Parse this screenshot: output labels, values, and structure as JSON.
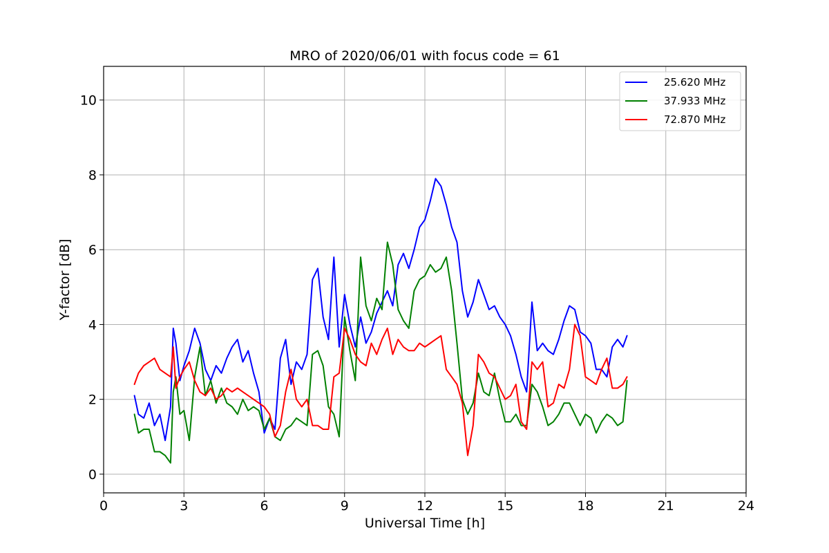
{
  "chart_data": {
    "type": "line",
    "title": "MRO of 2020/06/01 with focus code = 61",
    "xlabel": "Universal Time [h]",
    "ylabel": "Y-factor [dB]",
    "xlim": [
      0,
      24
    ],
    "ylim": [
      -0.5,
      10.9
    ],
    "xticks": [
      0,
      3,
      6,
      9,
      12,
      15,
      18,
      21,
      24
    ],
    "yticks": [
      0,
      2,
      4,
      6,
      8,
      10
    ],
    "grid": true,
    "legend_position": "top-right",
    "series": [
      {
        "name": "25.620 MHz",
        "color": "#0000ff",
        "x": [
          1.15,
          1.3,
          1.5,
          1.7,
          1.9,
          2.1,
          2.3,
          2.5,
          2.6,
          2.7,
          2.85,
          3.0,
          3.2,
          3.4,
          3.6,
          3.8,
          4.0,
          4.2,
          4.4,
          4.6,
          4.8,
          5.0,
          5.2,
          5.4,
          5.6,
          5.8,
          6.0,
          6.2,
          6.4,
          6.6,
          6.8,
          7.0,
          7.2,
          7.4,
          7.6,
          7.8,
          8.0,
          8.2,
          8.4,
          8.6,
          8.8,
          9.0,
          9.2,
          9.4,
          9.6,
          9.8,
          10.0,
          10.2,
          10.4,
          10.6,
          10.8,
          11.0,
          11.2,
          11.4,
          11.6,
          11.8,
          12.0,
          12.2,
          12.4,
          12.6,
          12.8,
          13.0,
          13.2,
          13.4,
          13.6,
          13.8,
          14.0,
          14.2,
          14.4,
          14.6,
          14.8,
          15.0,
          15.2,
          15.4,
          15.6,
          15.8,
          16.0,
          16.2,
          16.4,
          16.6,
          16.8,
          17.0,
          17.2,
          17.4,
          17.6,
          17.8,
          18.0,
          18.2,
          18.4,
          18.6,
          18.8,
          19.0,
          19.2,
          19.4,
          19.55
        ],
        "values": [
          2.1,
          1.6,
          1.5,
          1.9,
          1.3,
          1.6,
          0.9,
          1.8,
          3.9,
          3.5,
          2.5,
          2.9,
          3.3,
          3.9,
          3.5,
          2.8,
          2.5,
          2.9,
          2.7,
          3.1,
          3.4,
          3.6,
          3.0,
          3.3,
          2.7,
          2.2,
          1.1,
          1.5,
          1.2,
          3.1,
          3.6,
          2.4,
          3.0,
          2.8,
          3.2,
          5.2,
          5.5,
          4.2,
          3.6,
          5.8,
          3.4,
          4.8,
          4.0,
          3.4,
          4.2,
          3.5,
          3.8,
          4.3,
          4.6,
          4.9,
          4.5,
          5.6,
          5.9,
          5.5,
          6.0,
          6.6,
          6.8,
          7.3,
          7.9,
          7.7,
          7.2,
          6.6,
          6.2,
          4.9,
          4.2,
          4.6,
          5.2,
          4.8,
          4.4,
          4.5,
          4.2,
          4.0,
          3.7,
          3.2,
          2.6,
          2.2,
          4.6,
          3.3,
          3.5,
          3.3,
          3.2,
          3.6,
          4.1,
          4.5,
          4.4,
          3.8,
          3.7,
          3.5,
          2.8,
          2.8,
          2.6,
          3.4,
          3.6,
          3.4,
          3.7
        ]
      },
      {
        "name": "37.933 MHz",
        "color": "#008000",
        "x": [
          1.15,
          1.3,
          1.5,
          1.7,
          1.9,
          2.1,
          2.3,
          2.5,
          2.6,
          2.7,
          2.85,
          3.0,
          3.2,
          3.4,
          3.6,
          3.8,
          4.0,
          4.2,
          4.4,
          4.6,
          4.8,
          5.0,
          5.2,
          5.4,
          5.6,
          5.8,
          6.0,
          6.2,
          6.4,
          6.6,
          6.8,
          7.0,
          7.2,
          7.4,
          7.6,
          7.8,
          8.0,
          8.2,
          8.4,
          8.6,
          8.8,
          9.0,
          9.2,
          9.4,
          9.6,
          9.8,
          10.0,
          10.2,
          10.4,
          10.6,
          10.8,
          11.0,
          11.2,
          11.4,
          11.6,
          11.8,
          12.0,
          12.2,
          12.4,
          12.6,
          12.8,
          13.0,
          13.2,
          13.4,
          13.6,
          13.8,
          14.0,
          14.2,
          14.4,
          14.6,
          14.8,
          15.0,
          15.2,
          15.4,
          15.6,
          15.8,
          16.0,
          16.2,
          16.4,
          16.6,
          16.8,
          17.0,
          17.2,
          17.4,
          17.6,
          17.8,
          18.0,
          18.2,
          18.4,
          18.6,
          18.8,
          19.0,
          19.2,
          19.4,
          19.55
        ],
        "values": [
          1.6,
          1.1,
          1.2,
          1.2,
          0.6,
          0.6,
          0.5,
          0.3,
          2.2,
          2.6,
          1.6,
          1.7,
          0.9,
          2.6,
          3.4,
          2.1,
          2.5,
          1.9,
          2.3,
          1.9,
          1.8,
          1.6,
          2.0,
          1.7,
          1.8,
          1.7,
          1.2,
          1.5,
          1.0,
          0.9,
          1.2,
          1.3,
          1.5,
          1.4,
          1.3,
          3.2,
          3.3,
          2.9,
          1.8,
          1.6,
          1.0,
          4.2,
          3.3,
          2.5,
          5.8,
          4.5,
          4.1,
          4.7,
          4.4,
          6.2,
          5.6,
          4.4,
          4.1,
          3.9,
          4.9,
          5.2,
          5.3,
          5.6,
          5.4,
          5.5,
          5.8,
          4.9,
          3.5,
          2.0,
          1.6,
          1.9,
          2.7,
          2.2,
          2.1,
          2.7,
          2.0,
          1.4,
          1.4,
          1.6,
          1.3,
          1.3,
          2.4,
          2.2,
          1.8,
          1.3,
          1.4,
          1.6,
          1.9,
          1.9,
          1.6,
          1.3,
          1.6,
          1.5,
          1.1,
          1.4,
          1.6,
          1.5,
          1.3,
          1.4,
          2.5
        ]
      },
      {
        "name": "72.870 MHz",
        "color": "#ff0000",
        "x": [
          1.15,
          1.3,
          1.5,
          1.7,
          1.9,
          2.1,
          2.3,
          2.5,
          2.6,
          2.7,
          2.85,
          3.0,
          3.2,
          3.4,
          3.6,
          3.8,
          4.0,
          4.2,
          4.4,
          4.6,
          4.8,
          5.0,
          5.2,
          5.4,
          5.6,
          5.8,
          6.0,
          6.2,
          6.4,
          6.6,
          6.8,
          7.0,
          7.2,
          7.4,
          7.6,
          7.8,
          8.0,
          8.2,
          8.4,
          8.6,
          8.8,
          9.0,
          9.2,
          9.4,
          9.6,
          9.8,
          10.0,
          10.2,
          10.4,
          10.6,
          10.8,
          11.0,
          11.2,
          11.4,
          11.6,
          11.8,
          12.0,
          12.2,
          12.4,
          12.6,
          12.8,
          13.0,
          13.2,
          13.4,
          13.6,
          13.8,
          14.0,
          14.2,
          14.4,
          14.6,
          14.8,
          15.0,
          15.2,
          15.4,
          15.6,
          15.8,
          16.0,
          16.2,
          16.4,
          16.6,
          16.8,
          17.0,
          17.2,
          17.4,
          17.6,
          17.8,
          18.0,
          18.2,
          18.4,
          18.6,
          18.8,
          19.0,
          19.2,
          19.4,
          19.55
        ],
        "values": [
          2.4,
          2.7,
          2.9,
          3.0,
          3.1,
          2.8,
          2.7,
          2.6,
          3.4,
          2.3,
          2.6,
          2.8,
          3.0,
          2.5,
          2.2,
          2.1,
          2.3,
          2.0,
          2.1,
          2.3,
          2.2,
          2.3,
          2.2,
          2.1,
          2.0,
          1.9,
          1.8,
          1.6,
          1.0,
          1.3,
          2.2,
          2.8,
          2.0,
          1.8,
          2.0,
          1.3,
          1.3,
          1.2,
          1.2,
          2.6,
          2.7,
          3.9,
          3.6,
          3.2,
          3.0,
          2.9,
          3.5,
          3.2,
          3.6,
          3.9,
          3.2,
          3.6,
          3.4,
          3.3,
          3.3,
          3.5,
          3.4,
          3.5,
          3.6,
          3.7,
          2.8,
          2.6,
          2.4,
          1.9,
          0.5,
          1.3,
          3.2,
          3.0,
          2.7,
          2.6,
          2.3,
          2.0,
          2.1,
          2.4,
          1.4,
          1.2,
          3.0,
          2.8,
          3.0,
          1.8,
          1.9,
          2.4,
          2.3,
          2.8,
          4.0,
          3.7,
          2.6,
          2.5,
          2.4,
          2.8,
          3.1,
          2.3,
          2.3,
          2.4,
          2.6
        ]
      }
    ]
  }
}
